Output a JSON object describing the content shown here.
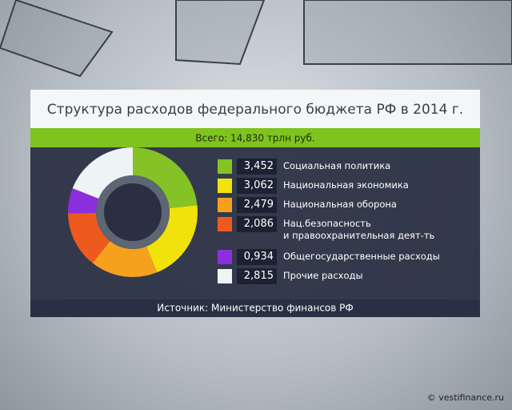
{
  "chart_data": {
    "type": "pie",
    "title": "Структура расходов федерального бюджета РФ в 2014 г.",
    "subtitle": "Всего: 14,830 трлн руб.",
    "categories": [
      "Социальная политика",
      "Национальная экономика",
      "Национальная оборона",
      "Нац.безопасность\nи правоохранительная деят-ть",
      "Общегосударственные расходы",
      "Прочие расходы"
    ],
    "values": [
      3.452,
      3.062,
      2.479,
      2.086,
      0.934,
      2.815
    ],
    "value_labels": [
      "3,452",
      "3,062",
      "2,479",
      "2,086",
      "0,934",
      "2,815"
    ],
    "colors": [
      "#84c225",
      "#f1e20c",
      "#f6a11e",
      "#ee5a1e",
      "#8b2fdc",
      "#eef3f6"
    ],
    "source": "Источник: Министерство финансов РФ",
    "watermark": "© vestifinance.ru"
  }
}
